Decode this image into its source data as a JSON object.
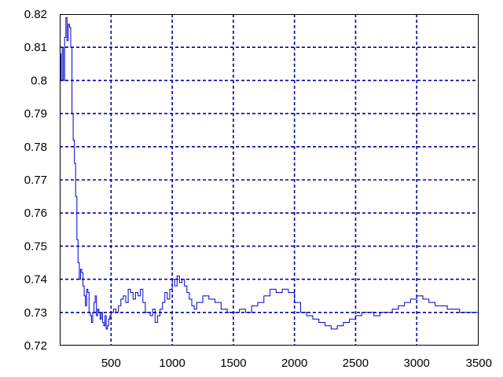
{
  "chart_data": {
    "type": "line",
    "title": "",
    "xlabel": "",
    "ylabel": "",
    "xlim": [
      80,
      3500
    ],
    "ylim": [
      0.72,
      0.82
    ],
    "x_ticks": [
      500,
      1000,
      1500,
      2000,
      2500,
      3000,
      3500
    ],
    "y_ticks": [
      0.72,
      0.73,
      0.74,
      0.75,
      0.76,
      0.77,
      0.78,
      0.79,
      0.8,
      0.81,
      0.82
    ],
    "x_tick_labels": [
      "500",
      "1000",
      "1500",
      "2000",
      "2500",
      "3000",
      "3500"
    ],
    "y_tick_labels": [
      "0.72",
      "0.73",
      "0.74",
      "0.75",
      "0.76",
      "0.77",
      "0.78",
      "0.79",
      "0.8",
      "0.81",
      "0.82"
    ],
    "grid": true,
    "legend": "none",
    "colors": {
      "series": "#0000c8",
      "grid": "#0000a0",
      "frame": "#000000"
    },
    "series": [
      {
        "step": true,
        "x": [
          80,
          90,
          100,
          110,
          120,
          130,
          140,
          150,
          160,
          170,
          180,
          190,
          200,
          210,
          220,
          230,
          240,
          250,
          260,
          270,
          280,
          290,
          300,
          310,
          320,
          330,
          340,
          350,
          360,
          370,
          380,
          390,
          400,
          410,
          420,
          430,
          440,
          450,
          460,
          470,
          480,
          490,
          500,
          520,
          540,
          560,
          580,
          600,
          620,
          640,
          660,
          680,
          700,
          720,
          740,
          760,
          780,
          800,
          820,
          840,
          860,
          880,
          900,
          920,
          940,
          960,
          980,
          1000,
          1020,
          1040,
          1060,
          1080,
          1100,
          1120,
          1140,
          1160,
          1180,
          1200,
          1250,
          1300,
          1350,
          1400,
          1450,
          1500,
          1550,
          1600,
          1650,
          1700,
          1750,
          1800,
          1850,
          1900,
          1950,
          2000,
          2050,
          2100,
          2150,
          2200,
          2250,
          2300,
          2350,
          2400,
          2450,
          2500,
          2550,
          2600,
          2650,
          2700,
          2750,
          2800,
          2850,
          2900,
          2950,
          3000,
          3050,
          3100,
          3150,
          3200,
          3250,
          3300,
          3350,
          3400,
          3450,
          3500
        ],
        "y": [
          0.808,
          0.8,
          0.81,
          0.8,
          0.813,
          0.819,
          0.812,
          0.817,
          0.816,
          0.81,
          0.79,
          0.782,
          0.775,
          0.765,
          0.752,
          0.745,
          0.74,
          0.743,
          0.742,
          0.738,
          0.735,
          0.732,
          0.737,
          0.736,
          0.73,
          0.729,
          0.727,
          0.73,
          0.733,
          0.735,
          0.729,
          0.731,
          0.73,
          0.728,
          0.73,
          0.727,
          0.726,
          0.729,
          0.725,
          0.726,
          0.728,
          0.729,
          0.73,
          0.731,
          0.73,
          0.732,
          0.734,
          0.735,
          0.733,
          0.737,
          0.736,
          0.734,
          0.736,
          0.735,
          0.737,
          0.733,
          0.73,
          0.73,
          0.729,
          0.731,
          0.727,
          0.729,
          0.731,
          0.733,
          0.736,
          0.734,
          0.737,
          0.74,
          0.738,
          0.741,
          0.739,
          0.74,
          0.738,
          0.736,
          0.734,
          0.732,
          0.731,
          0.733,
          0.735,
          0.734,
          0.733,
          0.731,
          0.73,
          0.73,
          0.731,
          0.73,
          0.732,
          0.733,
          0.735,
          0.737,
          0.736,
          0.737,
          0.736,
          0.733,
          0.73,
          0.729,
          0.728,
          0.727,
          0.726,
          0.725,
          0.726,
          0.727,
          0.728,
          0.729,
          0.73,
          0.73,
          0.729,
          0.73,
          0.73,
          0.731,
          0.732,
          0.733,
          0.734,
          0.735,
          0.734,
          0.733,
          0.732,
          0.732,
          0.731,
          0.731,
          0.73,
          0.73,
          0.73,
          0.73
        ]
      }
    ]
  }
}
